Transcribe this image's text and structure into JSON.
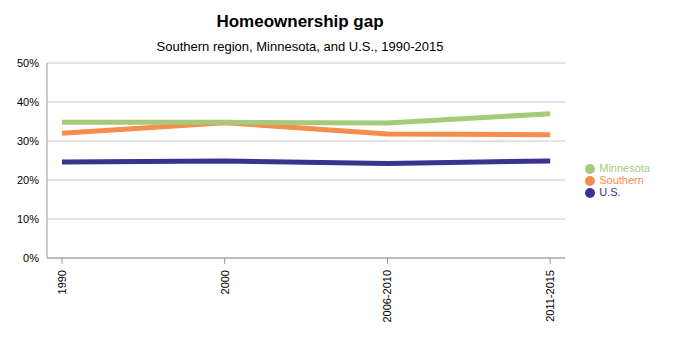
{
  "chart_data": {
    "type": "line",
    "title": "Homeownership gap",
    "subtitle": "Southern region, Minnesota, and U.S., 1990-2015",
    "categories": [
      "1990",
      "2000",
      "2006-2010",
      "2011-2015"
    ],
    "series": [
      {
        "name": "Southern",
        "color": "#f58d4d",
        "values": [
          32,
          34.7,
          31.8,
          31.6
        ]
      },
      {
        "name": "Minnesota",
        "color": "#a6c97b",
        "values": [
          34.8,
          34.8,
          34.6,
          37
        ]
      },
      {
        "name": "U.S.",
        "color": "#37348f",
        "values": [
          24.6,
          24.9,
          24.2,
          24.9
        ]
      }
    ],
    "ylim": [
      0,
      50
    ],
    "yticks": [
      {
        "value": 0,
        "label": "0%"
      },
      {
        "value": 10,
        "label": "10%"
      },
      {
        "value": 20,
        "label": "20%"
      },
      {
        "value": 30,
        "label": "30%"
      },
      {
        "value": 40,
        "label": "40%"
      },
      {
        "value": 50,
        "label": "50%"
      }
    ],
    "grid": true,
    "legend": "right"
  }
}
